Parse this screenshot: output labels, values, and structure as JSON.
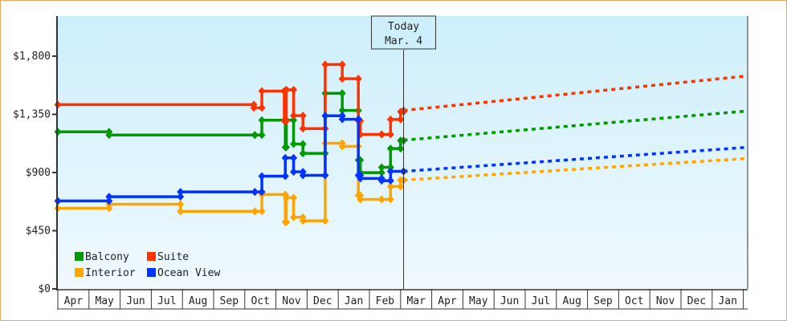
{
  "chart_data": {
    "type": "line",
    "step": true,
    "title": "",
    "xlabel": "",
    "ylabel": "",
    "ylim": [
      0,
      2110
    ],
    "y_ticks": [
      0,
      450,
      900,
      1350,
      1800
    ],
    "y_tick_labels": [
      "$0",
      "$450",
      "$900",
      "$1,350",
      "$1,800"
    ],
    "x_tick_labels": [
      "Apr",
      "May",
      "Jun",
      "Jul",
      "Aug",
      "Sep",
      "Oct",
      "Nov",
      "Dec",
      "Jan",
      "Feb",
      "Mar",
      "Apr",
      "May",
      "Jun",
      "Jul",
      "Aug",
      "Sep",
      "Oct",
      "Nov",
      "Dec",
      "Jan"
    ],
    "grid": false,
    "background_gradient": [
      "#cdeffc",
      "#f0f9fe"
    ],
    "legend_placement": "bottom-left",
    "today_marker": {
      "label": "Today",
      "date_label": "Mar. 4",
      "date": "Mar 4"
    },
    "series": [
      {
        "name": "Balcony",
        "color": "#009900",
        "points": [
          [
            "Apr 1",
            1215
          ],
          [
            "May 21",
            1190
          ],
          [
            "Oct 11",
            1190
          ],
          [
            "Oct 18",
            1305
          ],
          [
            "Nov 10",
            1095
          ],
          [
            "Nov 11",
            1305
          ],
          [
            "Nov 18",
            1120
          ],
          [
            "Nov 27",
            1048
          ],
          [
            "Dec 19",
            1513
          ],
          [
            "Jan 5",
            1380
          ],
          [
            "Jan 21",
            996
          ],
          [
            "Jan 23",
            899
          ],
          [
            "Feb 12",
            940
          ],
          [
            "Feb 20",
            1085
          ],
          [
            "Mar 1",
            1147
          ],
          [
            "Mar 4",
            1147
          ]
        ],
        "forecast": [
          [
            "Mar 4",
            1150
          ],
          [
            "Jan 31",
            1376
          ]
        ]
      },
      {
        "name": "Suite",
        "color": "#ff3300",
        "points": [
          [
            "Apr 1",
            1425
          ],
          [
            "Oct 10",
            1400
          ],
          [
            "Oct 18",
            1530
          ],
          [
            "Nov 9",
            1300
          ],
          [
            "Nov 11",
            1540
          ],
          [
            "Nov 18",
            1340
          ],
          [
            "Nov 27",
            1240
          ],
          [
            "Dec 19",
            1735
          ],
          [
            "Jan 5",
            1625
          ],
          [
            "Jan 21",
            1300
          ],
          [
            "Jan 23",
            1195
          ],
          [
            "Feb 12",
            1195
          ],
          [
            "Feb 20",
            1310
          ],
          [
            "Mar 1",
            1370
          ],
          [
            "Mar 4",
            1380
          ]
        ],
        "forecast": [
          [
            "Mar 4",
            1380
          ],
          [
            "Jan 31",
            1647
          ]
        ]
      },
      {
        "name": "Interior",
        "color": "#ffa500",
        "points": [
          [
            "Apr 1",
            624
          ],
          [
            "May 21",
            655
          ],
          [
            "Jul 30",
            600
          ],
          [
            "Oct 11",
            600
          ],
          [
            "Oct 18",
            730
          ],
          [
            "Nov 10",
            517
          ],
          [
            "Nov 11",
            705
          ],
          [
            "Nov 18",
            554
          ],
          [
            "Nov 27",
            527
          ],
          [
            "Dec 19",
            1126
          ],
          [
            "Jan 5",
            1102
          ],
          [
            "Jan 21",
            723
          ],
          [
            "Jan 23",
            692
          ],
          [
            "Feb 12",
            692
          ],
          [
            "Feb 20",
            792
          ],
          [
            "Mar 1",
            841
          ],
          [
            "Mar 4",
            841
          ]
        ],
        "forecast": [
          [
            "Mar 4",
            841
          ],
          [
            "Jan 31",
            1009
          ]
        ]
      },
      {
        "name": "Ocean View",
        "color": "#0033ff",
        "points": [
          [
            "Apr 1",
            680
          ],
          [
            "May 21",
            713
          ],
          [
            "Jul 30",
            750
          ],
          [
            "Oct 11",
            750
          ],
          [
            "Oct 18",
            872
          ],
          [
            "Nov 10",
            1013
          ],
          [
            "Nov 18",
            905
          ],
          [
            "Nov 27",
            878
          ],
          [
            "Dec 19",
            1339
          ],
          [
            "Jan 5",
            1312
          ],
          [
            "Jan 21",
            878
          ],
          [
            "Jan 23",
            854
          ],
          [
            "Feb 12",
            837
          ],
          [
            "Feb 20",
            909
          ],
          [
            "Mar 4",
            909
          ]
        ],
        "forecast": [
          [
            "Mar 4",
            909
          ],
          [
            "Jan 31",
            1095
          ]
        ]
      }
    ],
    "legend": [
      {
        "name": "Balcony",
        "color": "#009900"
      },
      {
        "name": "Suite",
        "color": "#ff3300"
      },
      {
        "name": "Interior",
        "color": "#ffa500"
      },
      {
        "name": "Ocean View",
        "color": "#0033ff"
      }
    ]
  }
}
